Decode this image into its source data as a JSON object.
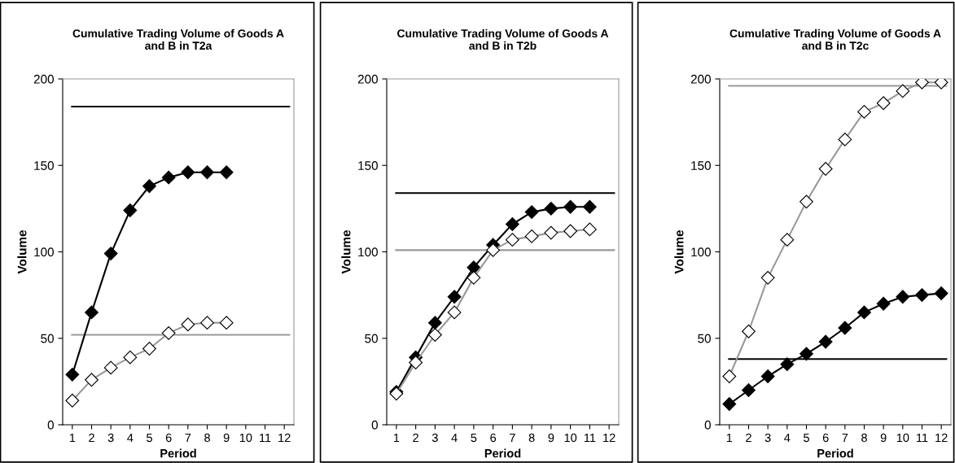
{
  "chart_data": [
    {
      "type": "line",
      "title": "Cumulative Trading Volume of Goods A\nand B in T2a",
      "xlabel": "Period",
      "ylabel": "Volume",
      "categories": [
        "1",
        "2",
        "3",
        "4",
        "5",
        "6",
        "7",
        "8",
        "9",
        "10",
        "11",
        "12"
      ],
      "series": [
        {
          "color": "#000000",
          "marker": "diamond",
          "values": [
            29,
            65,
            99,
            124,
            138,
            143,
            146,
            146,
            146,
            null,
            null,
            null
          ]
        },
        {
          "color": "#999999",
          "marker": "diamond",
          "values": [
            14,
            26,
            33,
            39,
            44,
            53,
            58,
            59,
            59,
            null,
            null,
            null
          ]
        }
      ],
      "ref_lines": [
        {
          "axis": "y",
          "value": 184,
          "color": "#000000"
        },
        {
          "axis": "y",
          "value": 52,
          "color": "#999999"
        }
      ],
      "ylim": [
        0,
        200
      ],
      "yticks": [
        0,
        50,
        100,
        150,
        200
      ],
      "grid": false
    },
    {
      "type": "line",
      "title": "Cumulative Trading Volume of Goods A\nand B in T2b",
      "xlabel": "Period",
      "ylabel": "Volume",
      "categories": [
        "1",
        "2",
        "3",
        "4",
        "5",
        "6",
        "7",
        "8",
        "9",
        "10",
        "11",
        "12"
      ],
      "series": [
        {
          "color": "#000000",
          "marker": "diamond",
          "values": [
            19,
            39,
            59,
            74,
            91,
            104,
            116,
            123,
            125,
            126,
            126,
            null
          ]
        },
        {
          "color": "#999999",
          "marker": "diamond",
          "values": [
            18,
            36,
            52,
            65,
            85,
            101,
            107,
            109,
            111,
            112,
            113,
            null
          ]
        }
      ],
      "ref_lines": [
        {
          "axis": "y",
          "value": 134,
          "color": "#000000"
        },
        {
          "axis": "y",
          "value": 101,
          "color": "#999999"
        }
      ],
      "ylim": [
        0,
        200
      ],
      "yticks": [
        0,
        50,
        100,
        150,
        200
      ],
      "grid": false
    },
    {
      "type": "line",
      "title": "Cumulative Trading Volume of Goods A\nand B in T2c",
      "xlabel": "Period",
      "ylabel": "Volume",
      "categories": [
        "1",
        "2",
        "3",
        "4",
        "5",
        "6",
        "7",
        "8",
        "9",
        "10",
        "11",
        "12"
      ],
      "series": [
        {
          "color": "#999999",
          "marker": "diamond",
          "values": [
            28,
            54,
            85,
            107,
            129,
            148,
            165,
            181,
            186,
            193,
            198,
            198
          ]
        },
        {
          "color": "#000000",
          "marker": "diamond",
          "values": [
            12,
            20,
            28,
            35,
            41,
            48,
            56,
            65,
            70,
            74,
            75,
            76
          ]
        }
      ],
      "ref_lines": [
        {
          "axis": "y",
          "value": 196,
          "color": "#999999"
        },
        {
          "axis": "y",
          "value": 38,
          "color": "#000000"
        }
      ],
      "ylim": [
        0,
        200
      ],
      "yticks": [
        0,
        50,
        100,
        150,
        200
      ],
      "grid": false
    }
  ]
}
